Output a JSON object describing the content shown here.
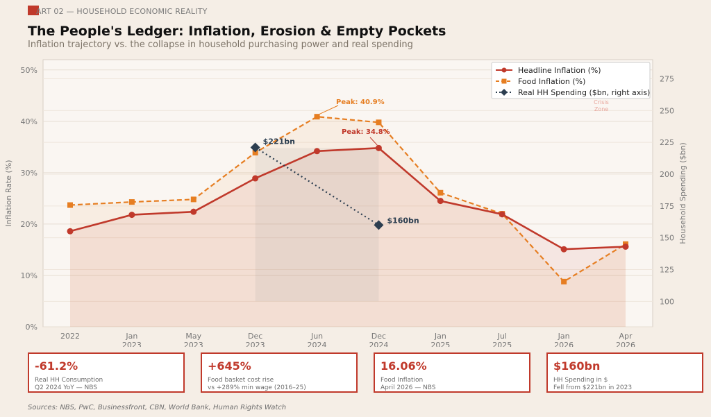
{
  "header": {
    "section_label": "ART 02 — HOUSEHOLD ECONOMIC REALITY",
    "title": "The People's Ledger: Inflation, Erosion & Empty Pockets",
    "subtitle": "Inflation trajectory vs. the collapse in household purchasing power and real spending"
  },
  "colors": {
    "headline": "#c0392b",
    "food": "#e67e22",
    "spending": "#2c3e50",
    "card_border": "#c0392b"
  },
  "chart_data": {
    "type": "line",
    "x": [
      "2022",
      "Jan\n2023",
      "May\n2023",
      "Dec\n2023",
      "Jun\n2024",
      "Dec\n2024",
      "Jan\n2025",
      "Jul\n2025",
      "Jan\n2026",
      "Apr\n2026"
    ],
    "ylabel": "Inflation Rate (%)",
    "ylim": [
      0,
      52
    ],
    "yticks": [
      "0%",
      "10%",
      "20%",
      "30%",
      "40%",
      "50%"
    ],
    "y2label": "Household Spending ($bn)",
    "y2lim": [
      80,
      290
    ],
    "y2ticks": [
      100,
      125,
      150,
      175,
      200,
      225,
      250,
      275
    ],
    "grid": true,
    "legend_position": "top-right",
    "series": [
      {
        "name": "Headline Inflation (%)",
        "axis": "left",
        "style": "solid",
        "marker": "circle",
        "values": [
          18.6,
          21.8,
          22.4,
          28.9,
          34.2,
          34.8,
          24.5,
          21.9,
          15.1,
          15.6
        ]
      },
      {
        "name": "Food Inflation (%)",
        "axis": "left",
        "style": "dashed",
        "marker": "square",
        "values": [
          23.7,
          24.3,
          24.8,
          33.9,
          40.9,
          39.8,
          26.1,
          22.0,
          8.8,
          16.1
        ]
      },
      {
        "name": "Real HH Spending ($bn, right axis)",
        "axis": "right",
        "style": "dotted",
        "marker": "diamond",
        "values": [
          null,
          null,
          null,
          221,
          null,
          160,
          null,
          null,
          null,
          null
        ]
      }
    ],
    "annotations": {
      "food_peak": "Peak: 40.9%",
      "headline_peak": "Peak: 34.8%",
      "spend_start": "$221bn",
      "spend_end": "$160bn",
      "crisis_zone": "Crisis\nZone"
    }
  },
  "cards": [
    {
      "value": "-61.2%",
      "line1": "Real HH Consumption",
      "line2": "Q2 2024 YoY — NBS"
    },
    {
      "value": "+645%",
      "line1": "Food basket cost rise",
      "line2": "vs +289% min wage (2016–25)"
    },
    {
      "value": "16.06%",
      "line1": "Food Inflation",
      "line2": "April 2026 — NBS"
    },
    {
      "value": "$160bn",
      "line1": "HH Spending in $",
      "line2": "Fell from $221bn in 2023"
    }
  ],
  "footer": {
    "sources": "Sources: NBS, PwC, Businessfront, CBN, World Bank, Human Rights Watch"
  }
}
